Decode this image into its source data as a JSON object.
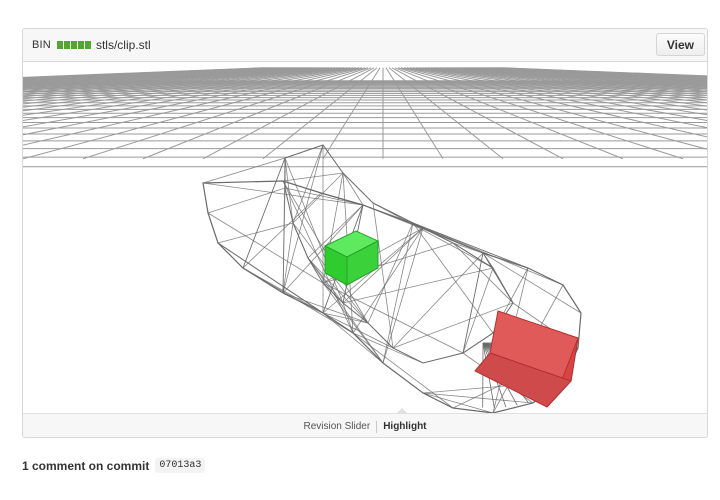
{
  "file_header": {
    "diff_label": "BIN",
    "diffstat_blocks": 5,
    "diffstat_color": "#55a532",
    "path": "stls/clip.stl",
    "view_button": "View"
  },
  "viewer": {
    "grid_color": "#9a9a9a",
    "mesh_color": "#6a6a6a",
    "added_color": "#2ecc2e",
    "removed_color": "#d84444"
  },
  "viewer_modes": {
    "revision_slider": "Revision Slider",
    "highlight": "Highlight",
    "active": "Highlight"
  },
  "comments": {
    "heading": "1 comment on commit",
    "sha": "07013a3"
  }
}
